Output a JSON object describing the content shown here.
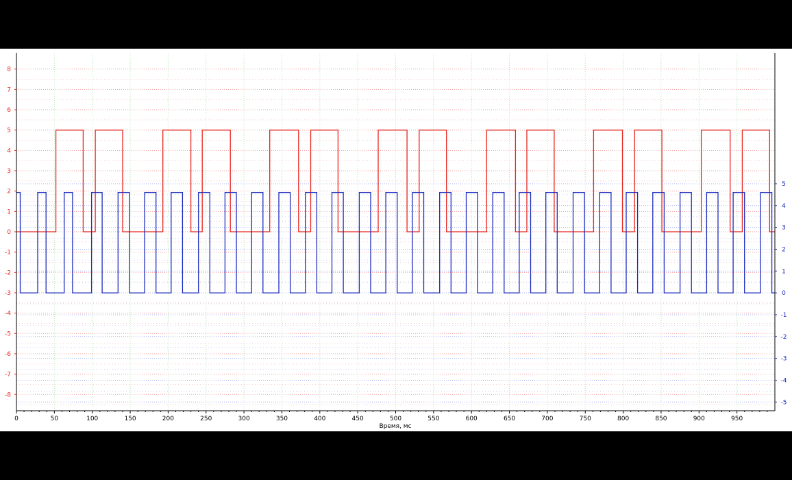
{
  "chart_data": {
    "type": "line",
    "title": "",
    "xlabel": "Время, мс",
    "xlim": [
      0,
      1000
    ],
    "xticks": [
      0,
      50,
      100,
      150,
      200,
      250,
      300,
      350,
      400,
      450,
      500,
      550,
      600,
      650,
      700,
      750,
      800,
      850,
      900,
      950
    ],
    "grid": true,
    "colors": {
      "series_red": "#e8251f",
      "series_blue": "#1c2dbf",
      "grid_red": "#f3a0a0",
      "grid_blue": "#a8b0f0",
      "grid_vertical": "#b9e7b9"
    },
    "axes": [
      {
        "name": "left",
        "side": "left",
        "color": "#e8251f",
        "ylim": [
          -8.8,
          8.8
        ],
        "ticks": [
          8,
          7,
          6,
          5,
          4,
          3,
          2,
          1,
          0,
          -1,
          -2,
          -3,
          -4,
          -5,
          -6,
          -7,
          -8
        ]
      },
      {
        "name": "right",
        "side": "right",
        "color": "#1c2dbf",
        "ylim": [
          -5.4,
          11.0
        ],
        "ticks": [
          5,
          4,
          3,
          2,
          1,
          0,
          -1,
          -2,
          -3,
          -4,
          -5
        ]
      }
    ],
    "series": [
      {
        "axis": "left",
        "color": "#e8251f",
        "low": 0,
        "high": 5,
        "transitions": [
          0,
          52,
          88,
          104,
          140,
          193,
          230,
          245,
          282,
          334,
          372,
          388,
          424,
          477,
          515,
          531,
          567,
          620,
          658,
          673,
          709,
          761,
          799,
          815,
          851,
          903,
          941,
          957,
          993,
          1000
        ],
        "start_level": 0
      },
      {
        "axis": "right",
        "color": "#1c2dbf",
        "low": 0,
        "high": 4.6,
        "transitions": [
          0,
          5,
          28,
          39,
          63,
          74,
          99,
          113,
          134,
          149,
          169,
          184,
          204,
          219,
          240,
          255,
          275,
          290,
          310,
          325,
          346,
          361,
          381,
          396,
          416,
          431,
          452,
          467,
          487,
          502,
          522,
          537,
          558,
          573,
          593,
          608,
          628,
          643,
          663,
          678,
          698,
          713,
          734,
          749,
          769,
          784,
          804,
          819,
          839,
          854,
          875,
          890,
          910,
          925,
          945,
          960,
          981,
          996,
          1000
        ],
        "start_level": 1
      }
    ]
  }
}
